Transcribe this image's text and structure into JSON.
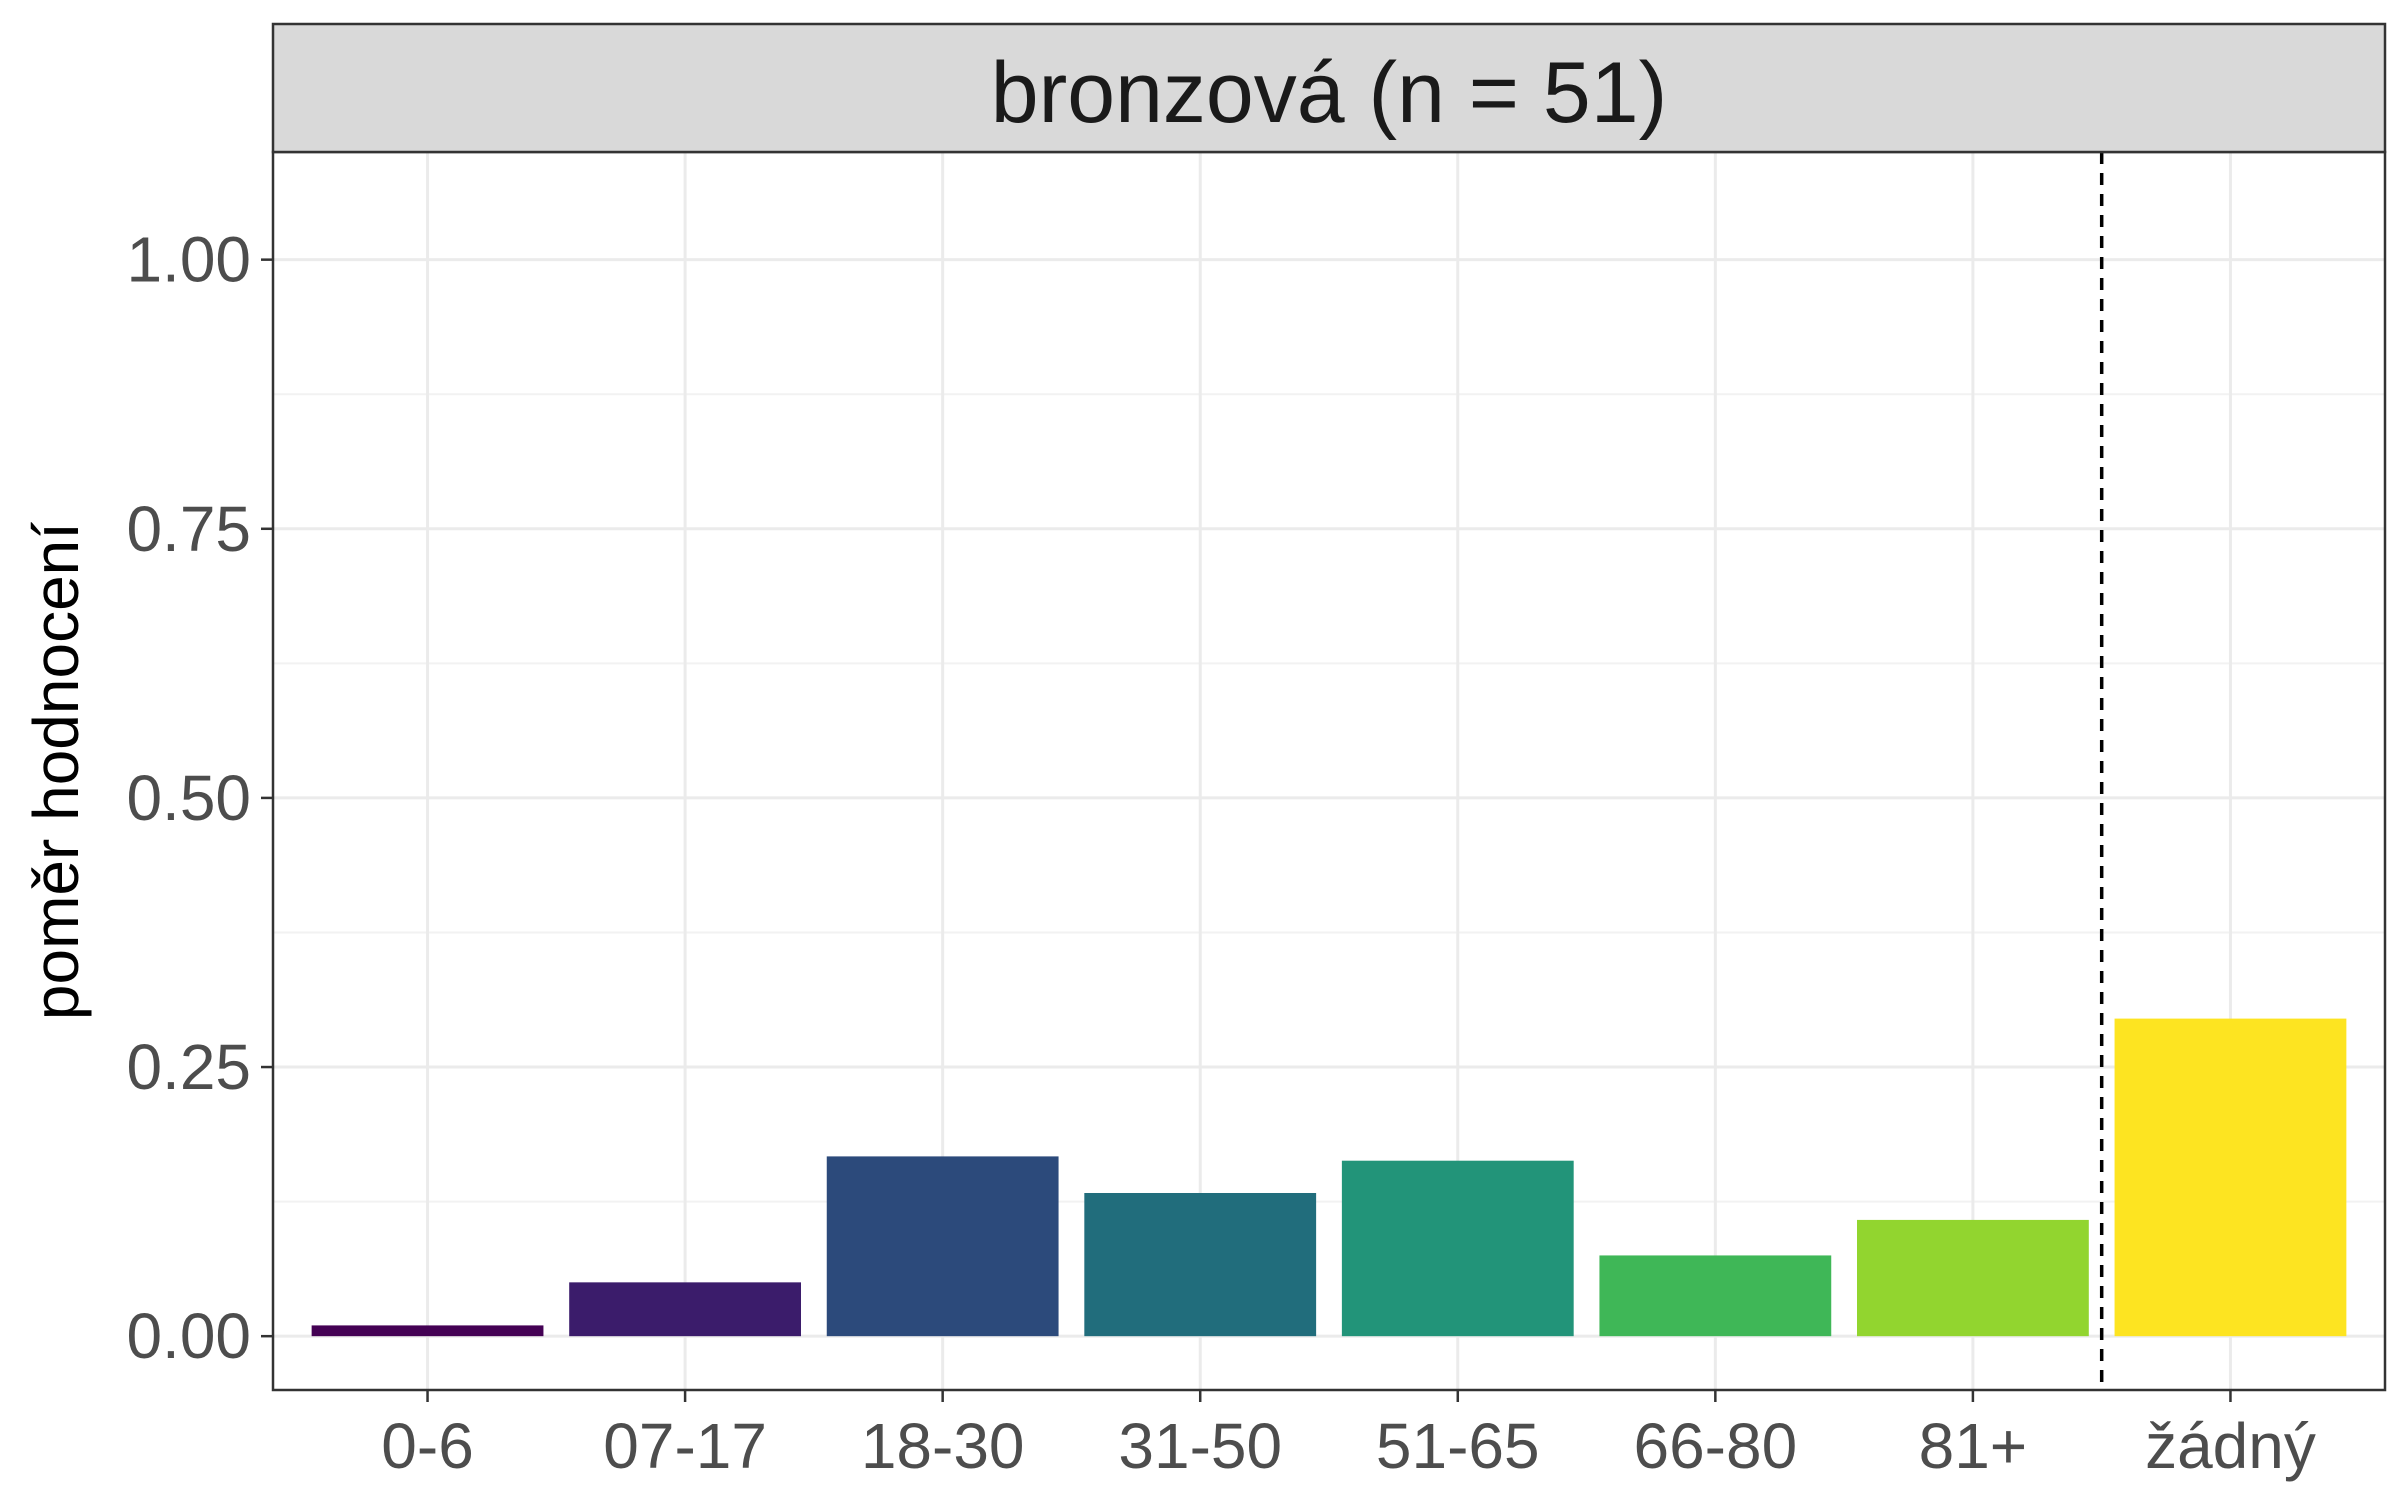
{
  "chart_data": {
    "type": "bar",
    "facet_title": "bronzová (n = 51)",
    "xlabel": "",
    "ylabel": "poměr hodnocení",
    "ylim": [
      -0.05,
      1.1
    ],
    "yticks": [
      0.0,
      0.25,
      0.5,
      0.75,
      1.0
    ],
    "ytick_labels": [
      "0.00",
      "0.25",
      "0.50",
      "0.75",
      "1.00"
    ],
    "categories": [
      "0-6",
      "07-17",
      "18-30",
      "31-50",
      "51-65",
      "66-80",
      "81+",
      "žádný"
    ],
    "values": [
      0.01,
      0.05,
      0.167,
      0.133,
      0.163,
      0.075,
      0.108,
      0.295
    ],
    "colors": [
      "#440154",
      "#3b1c6b",
      "#2c4a7b",
      "#216d7c",
      "#229479",
      "#3fb757",
      "#92d52f",
      "#fde421"
    ],
    "reference_line": {
      "between": [
        "81+",
        "žádný"
      ],
      "style": "dashed"
    },
    "grid": true
  }
}
